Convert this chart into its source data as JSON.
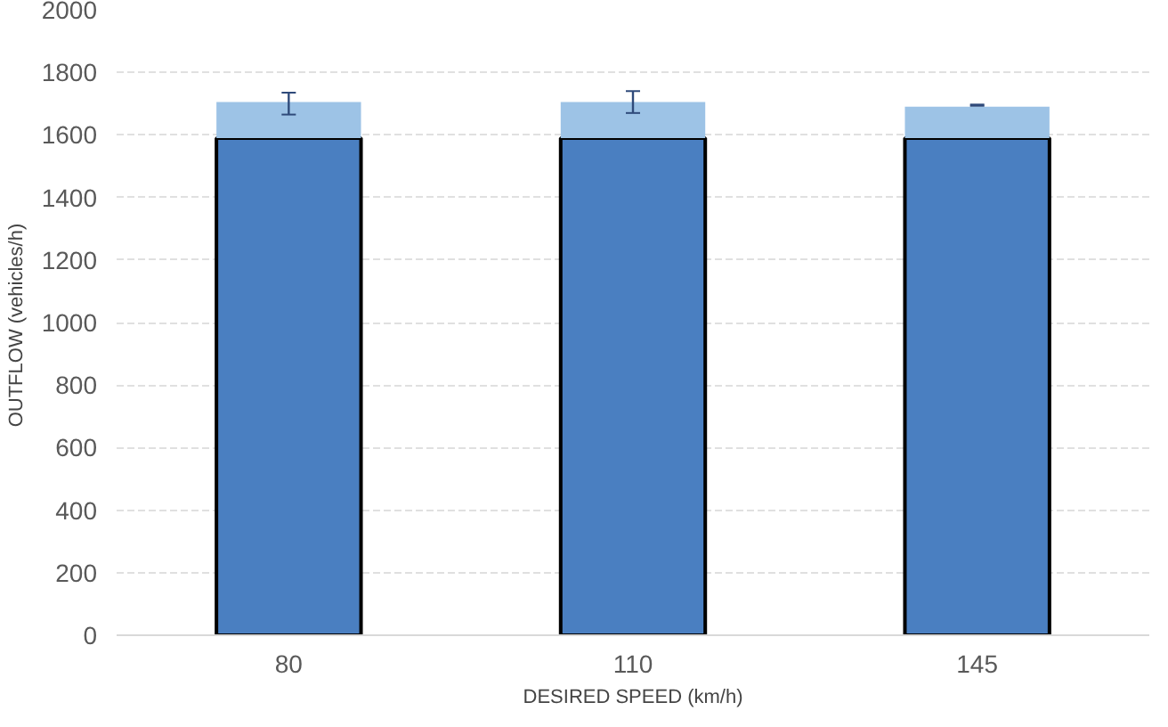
{
  "chart_data": {
    "type": "bar",
    "stacked": true,
    "xlabel": "DESIRED SPEED (km/h)",
    "ylabel": "OUTFLOW  (vehicles/h)",
    "categories": [
      "80",
      "110",
      "145"
    ],
    "series": [
      {
        "color": "#4a7fc1",
        "values": [
          1590,
          1590,
          1590
        ]
      },
      {
        "color": "#9dc3e6",
        "values": [
          115,
          115,
          100
        ],
        "errors": [
          [
            1665,
            1735
          ],
          [
            1670,
            1740
          ],
          [
            1693,
            1697
          ]
        ]
      }
    ],
    "ylim": [
      0,
      2000
    ],
    "yticks": [
      0,
      200,
      400,
      600,
      800,
      1000,
      1200,
      1400,
      1600,
      1800,
      2000
    ],
    "grid": "y"
  }
}
